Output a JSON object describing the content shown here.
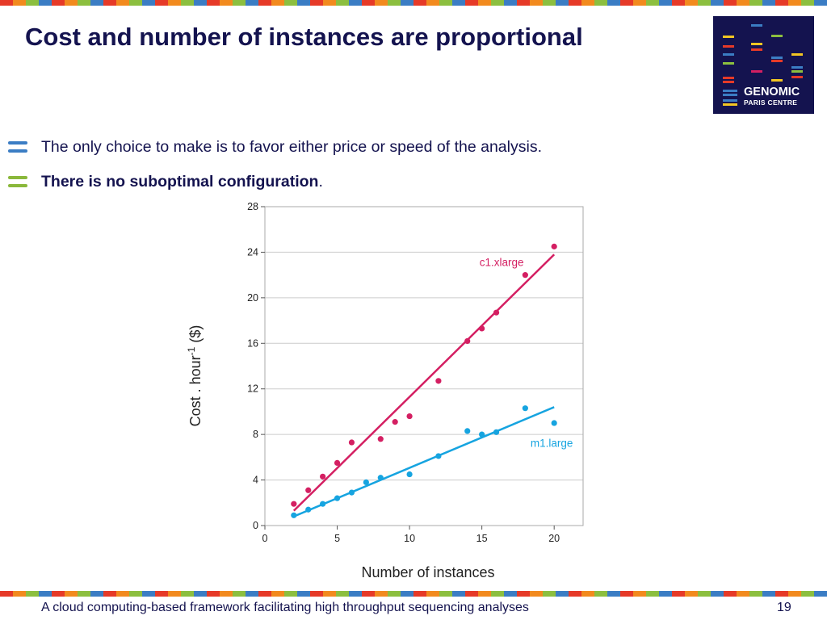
{
  "slide": {
    "title": "Cost and number of instances are proportional",
    "bullets": [
      {
        "text": "The only choice to make is to favor either price or speed of the analysis.",
        "bold": "",
        "suffix": ""
      },
      {
        "text": "",
        "bold": "There is no suboptimal configuration",
        "suffix": "."
      }
    ],
    "logo": {
      "line1": "GENOMIC",
      "line2": "PARIS CENTRE"
    },
    "footer": "A cloud computing-based framework facilitating high throughput sequencing analyses",
    "page_number": "19"
  },
  "colors": {
    "title": "#14134f",
    "c1": "#d41f62",
    "m1": "#16a4e0",
    "grid": "#cccccc",
    "bullet1": "#3a77b6",
    "bullet2": "#8ab83b",
    "stripe": [
      "#e63a28",
      "#f28a1e",
      "#8cbf3f",
      "#3b7dc4"
    ]
  },
  "chart_data": {
    "type": "scatter",
    "xlabel": "Number of instances",
    "ylabel_main": "Cost . hour",
    "ylabel_sup": "-1",
    "ylabel_unit": " ($)",
    "xlim": [
      0,
      22
    ],
    "ylim": [
      0,
      28
    ],
    "xticks": [
      0,
      5,
      10,
      15,
      20
    ],
    "yticks": [
      0,
      4,
      8,
      12,
      16,
      20,
      24,
      28
    ],
    "grid": true,
    "series": [
      {
        "name": "c1.xlarge",
        "color": "#d41f62",
        "points": [
          [
            2,
            1.9
          ],
          [
            3,
            3.1
          ],
          [
            4,
            4.3
          ],
          [
            5,
            5.5
          ],
          [
            6,
            7.3
          ],
          [
            8,
            7.6
          ],
          [
            9,
            9.1
          ],
          [
            10,
            9.6
          ],
          [
            12,
            12.7
          ],
          [
            14,
            16.2
          ],
          [
            15,
            17.3
          ],
          [
            16,
            18.7
          ],
          [
            18,
            22.0
          ],
          [
            20,
            24.5
          ]
        ],
        "fit": [
          [
            2,
            1.3
          ],
          [
            20,
            23.8
          ]
        ]
      },
      {
        "name": "m1.large",
        "color": "#16a4e0",
        "points": [
          [
            2,
            0.9
          ],
          [
            3,
            1.4
          ],
          [
            4,
            1.9
          ],
          [
            5,
            2.4
          ],
          [
            6,
            2.9
          ],
          [
            7,
            3.8
          ],
          [
            8,
            4.2
          ],
          [
            10,
            4.5
          ],
          [
            12,
            6.1
          ],
          [
            14,
            8.3
          ],
          [
            15,
            8.0
          ],
          [
            16,
            8.2
          ],
          [
            18,
            10.3
          ],
          [
            20,
            9.0
          ]
        ],
        "fit": [
          [
            2,
            0.8
          ],
          [
            20,
            10.4
          ]
        ]
      }
    ]
  }
}
